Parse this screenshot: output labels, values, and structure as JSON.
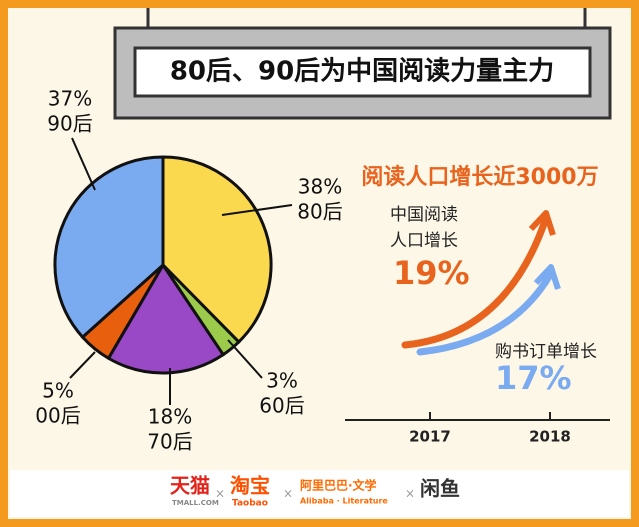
{
  "chart_data": [
    {
      "type": "pie",
      "title": "80后、90后为中国阅读力量主力",
      "categories": [
        "80后",
        "60后",
        "70后",
        "00后",
        "90后"
      ],
      "values": [
        38,
        3,
        18,
        5,
        37
      ],
      "value_labels": [
        "38%",
        "3%",
        "18%",
        "5%",
        "37%"
      ],
      "colors": [
        "#fbd94e",
        "#9ccb4c",
        "#9a49c6",
        "#e8600e",
        "#7aaaf0"
      ]
    },
    {
      "type": "growth",
      "title": "阅读人口增长近3000万",
      "categories": [
        "2017",
        "2018"
      ],
      "series": [
        {
          "name": "中国阅读人口增长",
          "color": "#e8641e",
          "value": 19,
          "value_label": "19%"
        },
        {
          "name": "购书订单增长",
          "color": "#7aaaf0",
          "value": 17,
          "value_label": "17%"
        }
      ]
    }
  ],
  "footer": {
    "separator": "×",
    "logos": [
      "天猫",
      "TMALL.COM",
      "淘宝",
      "Taobao",
      "阿里巴巴·文学",
      "Alibaba · Literature",
      "闲鱼"
    ]
  }
}
